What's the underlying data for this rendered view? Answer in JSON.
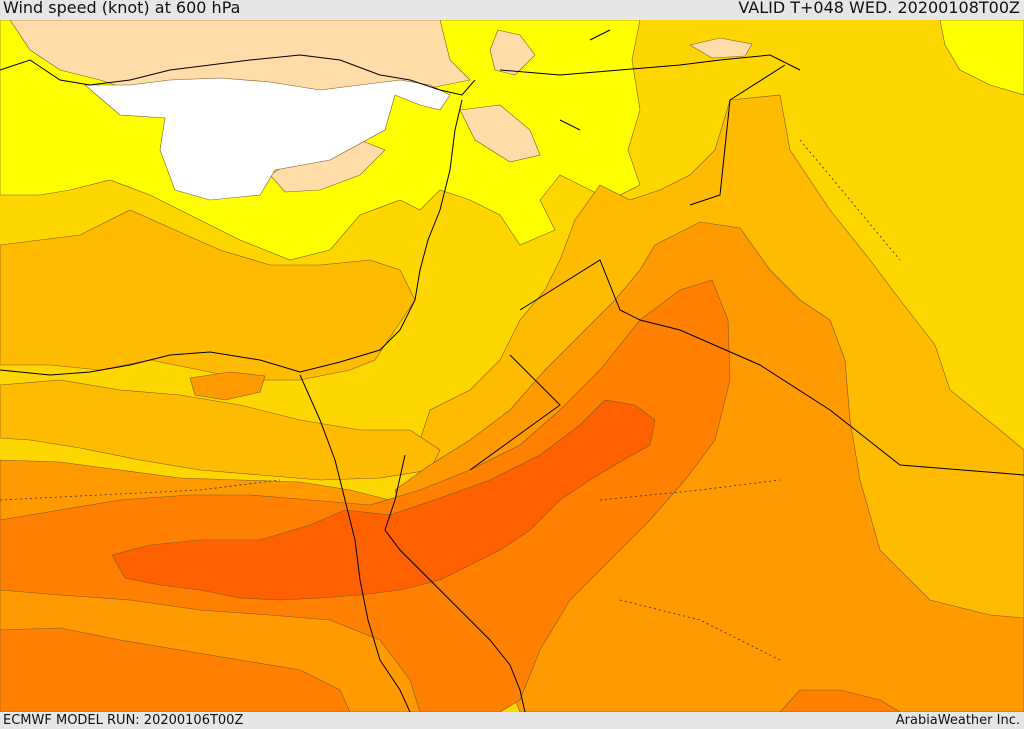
{
  "header": {
    "title": "Wind speed (knot) at 600 hPa",
    "valid": "VALID T+048 WED. 20200108T00Z"
  },
  "footer": {
    "model_run": "ECMWF MODEL RUN: 20200106T00Z",
    "credit": "ArabiaWeather Inc."
  },
  "colors": {
    "land_light": "#ffdca8",
    "calm": "#ffffff",
    "level_1": "#ffff00",
    "level_2": "#ffd700",
    "level_3": "#ffbb00",
    "level_4": "#ff9a00",
    "level_5": "#ff8000",
    "level_6": "#ff6000",
    "coastline": "#000000",
    "contour": "#7a5a2a"
  }
}
